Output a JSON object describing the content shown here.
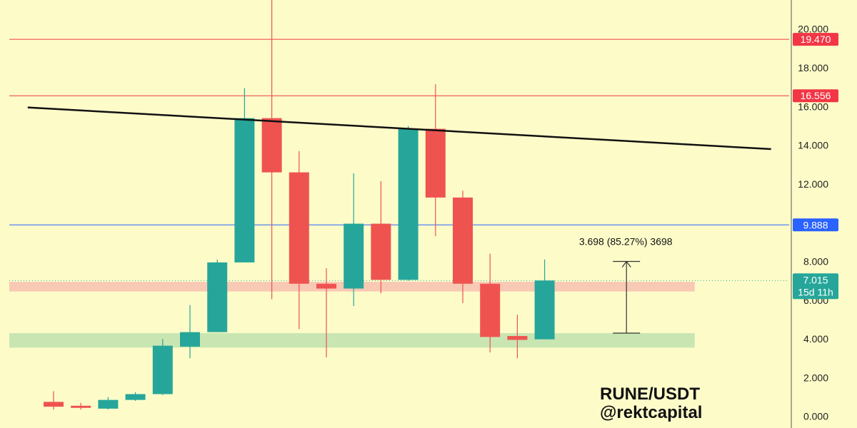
{
  "chart_data": {
    "type": "candlestick",
    "symbol": "RUNE/USDT",
    "watermark": {
      "line1": "RUNE/USDT",
      "line2": "@rektcapital"
    },
    "ylim": [
      -0.6,
      21.5
    ],
    "y_ticks": [
      {
        "value": 0,
        "label": "0.000"
      },
      {
        "value": 2,
        "label": "2.000"
      },
      {
        "value": 4,
        "label": "4.000"
      },
      {
        "value": 6,
        "label": "6.000"
      },
      {
        "value": 8,
        "label": "8.000"
      },
      {
        "value": 10,
        "label": "10.000"
      },
      {
        "value": 12,
        "label": "12.000"
      },
      {
        "value": 14,
        "label": "14.000"
      },
      {
        "value": 16,
        "label": "16.000"
      },
      {
        "value": 18,
        "label": "18.000"
      },
      {
        "value": 20,
        "label": "20.000"
      }
    ],
    "candles": [
      {
        "open": 0.75,
        "high": 1.3,
        "low": 0.35,
        "close": 0.5
      },
      {
        "open": 0.55,
        "high": 0.7,
        "low": 0.35,
        "close": 0.45
      },
      {
        "open": 0.4,
        "high": 1.0,
        "low": 0.35,
        "close": 0.85
      },
      {
        "open": 0.85,
        "high": 1.25,
        "low": 0.8,
        "close": 1.15
      },
      {
        "open": 1.15,
        "high": 4.0,
        "low": 1.1,
        "close": 3.65
      },
      {
        "open": 3.6,
        "high": 5.75,
        "low": 3.0,
        "close": 4.35
      },
      {
        "open": 4.35,
        "high": 8.1,
        "low": 4.35,
        "close": 7.95
      },
      {
        "open": 7.95,
        "high": 16.95,
        "low": 7.95,
        "close": 15.4
      },
      {
        "open": 15.4,
        "high": 21.5,
        "low": 6.05,
        "close": 12.6
      },
      {
        "open": 12.6,
        "high": 13.7,
        "low": 4.5,
        "close": 6.85
      },
      {
        "open": 6.85,
        "high": 7.65,
        "low": 3.05,
        "close": 6.6
      },
      {
        "open": 6.6,
        "high": 12.55,
        "low": 5.7,
        "close": 9.95
      },
      {
        "open": 9.95,
        "high": 12.15,
        "low": 6.35,
        "close": 7.05
      },
      {
        "open": 7.05,
        "high": 15.0,
        "low": 7.0,
        "close": 14.85
      },
      {
        "open": 14.85,
        "high": 17.15,
        "low": 9.3,
        "close": 11.3
      },
      {
        "open": 11.3,
        "high": 11.65,
        "low": 5.85,
        "close": 6.85
      },
      {
        "open": 6.85,
        "high": 8.4,
        "low": 3.3,
        "close": 4.1
      },
      {
        "open": 4.15,
        "high": 5.25,
        "low": 3.0,
        "close": 3.95
      },
      {
        "open": 3.98,
        "high": 8.1,
        "low": 3.98,
        "close": 7.015
      }
    ],
    "horizontal_lines": [
      {
        "value": 19.47,
        "label": "19.470",
        "color": "#f23645"
      },
      {
        "value": 16.556,
        "label": "16.556",
        "color": "#f23645"
      },
      {
        "value": 9.888,
        "label": "9.888",
        "color": "#2962ff"
      }
    ],
    "current_price": {
      "value": 7.015,
      "label": "7.015",
      "countdown": "15d 11h",
      "color": "#26a69a"
    },
    "zones": [
      {
        "from": 6.45,
        "to": 6.95,
        "color": "#f8c9b4",
        "end_candle": 23.5
      },
      {
        "from": 3.55,
        "to": 4.3,
        "color": "#c9e6b2",
        "end_candle": 23.5
      }
    ],
    "trendline": {
      "from": {
        "candle": -1,
        "value": 15.95
      },
      "to": {
        "candle": 26.3,
        "value": 13.8
      },
      "color": "#111111"
    },
    "measure": {
      "label": "3.698 (85.27%) 3698",
      "from": 4.3,
      "to": 8.0,
      "candle": 21
    },
    "colors": {
      "up": "#26a69a",
      "down": "#ef5350",
      "background": "#fdfcc9",
      "axis_text": "#222222"
    }
  }
}
